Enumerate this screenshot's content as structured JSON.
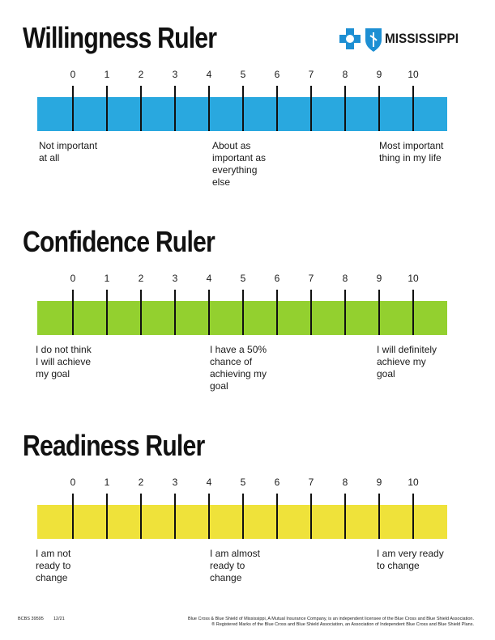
{
  "header": {
    "brand": "MISSISSIPPI"
  },
  "rulers": [
    {
      "title": "Willingness Ruler",
      "color": "#29a8df",
      "scale": [
        0,
        1,
        2,
        3,
        4,
        5,
        6,
        7,
        8,
        9,
        10
      ],
      "anchors": [
        [
          "Not important",
          "at all"
        ],
        [
          "About as",
          "important as",
          "everything",
          "else"
        ],
        [
          "Most important",
          "thing in my life"
        ]
      ]
    },
    {
      "title": "Confidence Ruler",
      "color": "#93d02f",
      "scale": [
        0,
        1,
        2,
        3,
        4,
        5,
        6,
        7,
        8,
        9,
        10
      ],
      "anchors": [
        [
          "I do not think",
          "I will achieve",
          "my goal"
        ],
        [
          "I have a 50%",
          "chance of",
          "achieving my",
          "goal"
        ],
        [
          "I will definitely",
          "achieve my",
          "goal"
        ]
      ]
    },
    {
      "title": "Readiness Ruler",
      "color": "#efe23a",
      "scale": [
        0,
        1,
        2,
        3,
        4,
        5,
        6,
        7,
        8,
        9,
        10
      ],
      "anchors": [
        [
          "I am not",
          "ready to",
          "change"
        ],
        [
          "I am almost",
          "ready to",
          "change"
        ],
        [
          "I am very ready",
          "to change"
        ]
      ]
    }
  ],
  "footer": {
    "code": "BCBS 39595",
    "date": "12/21",
    "legal": [
      "Blue Cross & Blue Shield of Mississippi, A Mutual Insurance Company, is an independent licensee of the Blue Cross and Blue Shield Association.",
      "® Registered Marks of the Blue Cross and Blue Shield Association, an Association of Independent Blue Cross and Blue Shield Plans."
    ]
  }
}
